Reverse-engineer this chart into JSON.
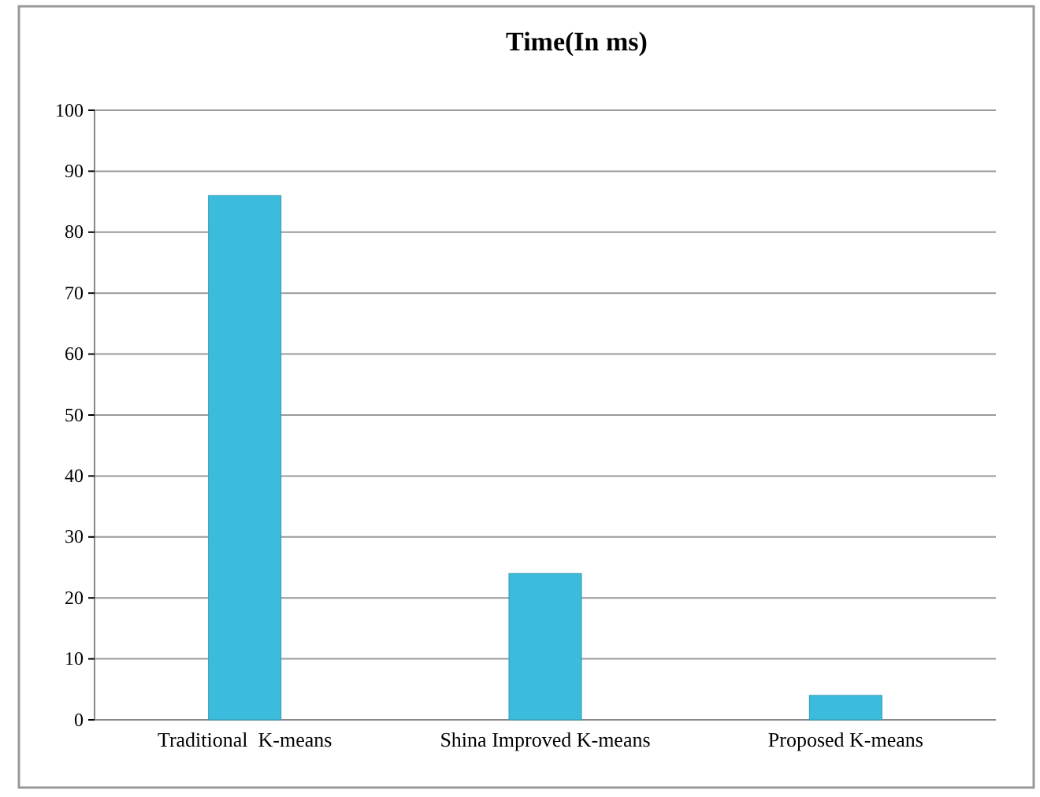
{
  "chart_data": {
    "type": "bar",
    "title": "Time(In ms)",
    "categories": [
      "Traditional  K-means",
      "Shina Improved K-means",
      "Proposed K-means"
    ],
    "values": [
      86,
      24,
      4
    ],
    "color": "#3bbcdd",
    "ylim": [
      0,
      100
    ],
    "yticks": [
      0,
      10,
      20,
      30,
      40,
      50,
      60,
      70,
      80,
      90,
      100
    ],
    "grid": "y"
  }
}
